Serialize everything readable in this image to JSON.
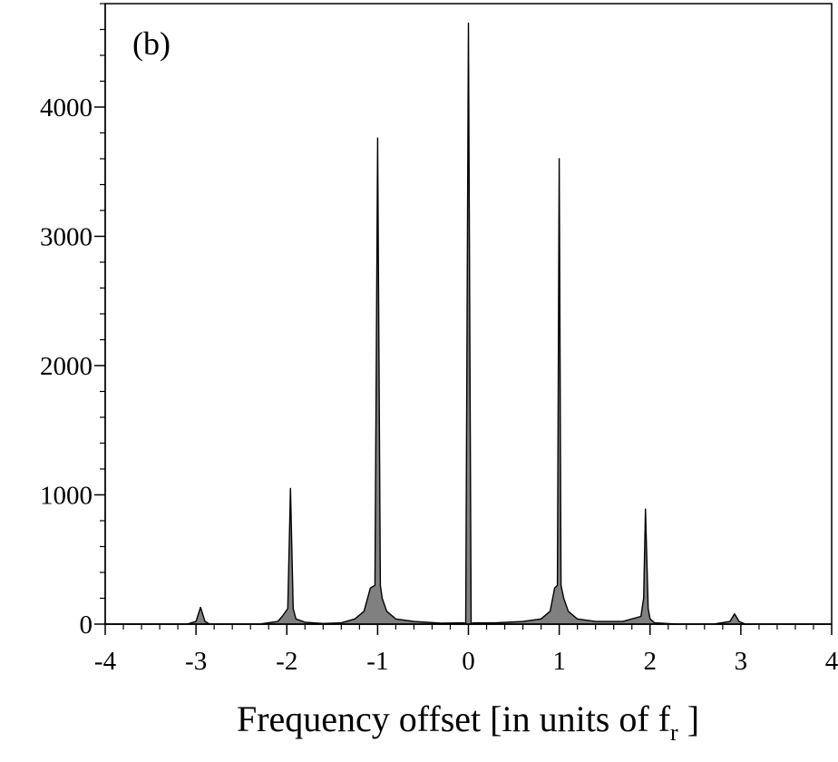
{
  "chart_data": {
    "type": "area",
    "panel_label": "(b)",
    "title": "",
    "xlabel": {
      "text": "Frequency offset [in units  of f",
      "subscript": "r",
      "suffix": " ]"
    },
    "ylabel": "",
    "xlim": [
      -4,
      4
    ],
    "ylim": [
      0,
      4800
    ],
    "xticks": [
      -4,
      -3,
      -2,
      -1,
      0,
      1,
      2,
      3,
      4
    ],
    "xtick_labels": [
      "-4",
      "-3",
      "-2",
      "-1",
      "0",
      "1",
      "2",
      "3",
      "4"
    ],
    "yticks": [
      0,
      1000,
      2000,
      3000,
      4000
    ],
    "ytick_labels": [
      "0",
      "1000",
      "2000",
      "3000",
      "4000"
    ],
    "grid": false,
    "fill_color": "#808080",
    "line_color": "#000000",
    "series": [
      {
        "x": [
          -4.0,
          -3.5,
          -3.1,
          -3.0,
          -2.95,
          -2.9,
          -2.85,
          -2.6,
          -2.3,
          -2.1,
          -2.05,
          -1.99,
          -1.96,
          -1.93,
          -1.9,
          -1.8,
          -1.6,
          -1.4,
          -1.25,
          -1.15,
          -1.08,
          -1.03,
          -1.0,
          -0.97,
          -0.95,
          -0.9,
          -0.8,
          -0.6,
          -0.3,
          -0.05,
          -0.03,
          0.0,
          0.03,
          0.05,
          0.3,
          0.6,
          0.8,
          0.9,
          0.95,
          0.98,
          1.0,
          1.02,
          1.05,
          1.1,
          1.2,
          1.4,
          1.7,
          1.9,
          1.93,
          1.95,
          1.98,
          2.0,
          2.05,
          2.3,
          2.7,
          2.88,
          2.93,
          2.98,
          3.05,
          3.5,
          4.0
        ],
        "y": [
          0,
          0,
          0,
          20,
          130,
          20,
          0,
          0,
          0,
          20,
          60,
          120,
          1050,
          120,
          40,
          15,
          5,
          10,
          40,
          100,
          280,
          300,
          3760,
          300,
          200,
          100,
          40,
          20,
          8,
          10,
          0,
          4650,
          0,
          10,
          10,
          20,
          40,
          100,
          280,
          300,
          3600,
          300,
          200,
          100,
          40,
          20,
          20,
          60,
          200,
          890,
          120,
          40,
          10,
          0,
          0,
          20,
          80,
          20,
          0,
          0,
          0
        ]
      }
    ]
  }
}
